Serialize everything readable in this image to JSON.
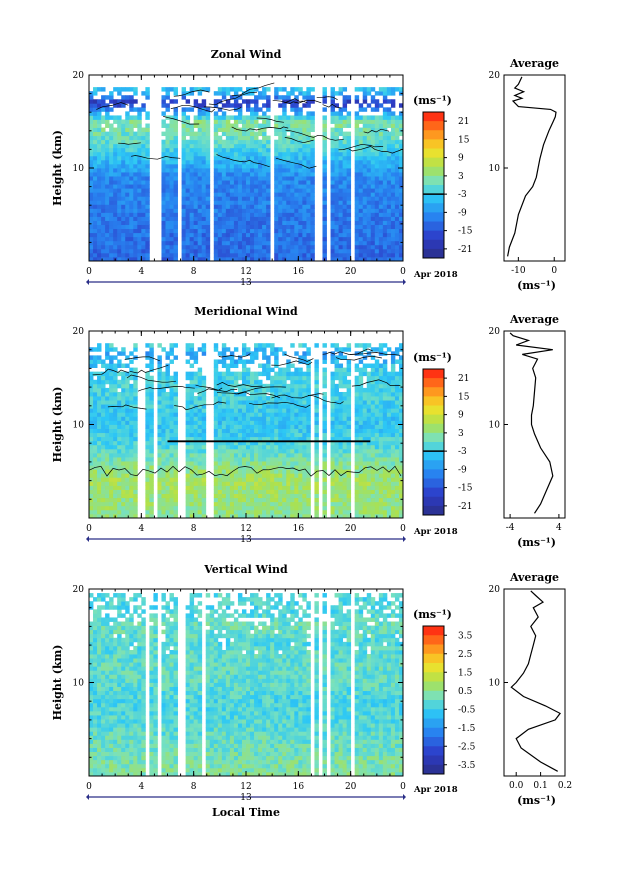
{
  "figure": {
    "panels": [
      {
        "title": "Zonal Wind",
        "ylabel": "Height (km)",
        "yticks": [
          "10",
          "20"
        ],
        "xticks": [
          "0",
          "4",
          "8",
          "12",
          "16",
          "20",
          "0"
        ],
        "date_day": "13",
        "date_month": "Apr 2018",
        "colorbar": {
          "unit": "(ms⁻¹)",
          "labels": [
            "21",
            "15",
            "9",
            "3",
            "-3",
            "-9",
            "-15",
            "-21"
          ],
          "top_color": "#ff1a10",
          "bottom_color": "#2a2f88"
        },
        "average": {
          "title": "Average",
          "xlabel": "(ms⁻¹)",
          "xticks": [
            "-10",
            "0"
          ],
          "yticks": [
            "10",
            "20"
          ]
        }
      },
      {
        "title": "Meridional Wind",
        "ylabel": "Height (km)",
        "yticks": [
          "10",
          "20"
        ],
        "xticks": [
          "0",
          "4",
          "8",
          "12",
          "16",
          "20",
          "0"
        ],
        "date_day": "13",
        "date_month": "Apr 2018",
        "colorbar": {
          "unit": "(ms⁻¹)",
          "labels": [
            "21",
            "15",
            "9",
            "3",
            "-3",
            "-9",
            "-15",
            "-21"
          ],
          "top_color": "#ff1a10",
          "bottom_color": "#2a2f88"
        },
        "average": {
          "title": "Average",
          "xlabel": "(ms⁻¹)",
          "xticks": [
            "-4",
            "4"
          ],
          "yticks": [
            "10",
            "20"
          ]
        }
      },
      {
        "title": "Vertical Wind",
        "ylabel": "Height (km)",
        "yticks": [
          "10",
          "20"
        ],
        "xticks": [
          "0",
          "4",
          "8",
          "12",
          "16",
          "20",
          "0"
        ],
        "date_day": "13",
        "date_month": "Apr 2018",
        "xlabel": "Local Time",
        "colorbar": {
          "unit": "(ms⁻¹)",
          "labels": [
            "3.5",
            "2.5",
            "1.5",
            "0.5",
            "-0.5",
            "-1.5",
            "-2.5",
            "-3.5"
          ],
          "top_color": "#ff1a10",
          "bottom_color": "#2a2f88"
        },
        "average": {
          "title": "Average",
          "xlabel": "(ms⁻¹)",
          "xticks": [
            "0.0",
            "0.1",
            "0.2"
          ],
          "yticks": [
            "10",
            "20"
          ]
        }
      }
    ]
  },
  "chart_data": [
    {
      "type": "heatmap",
      "title": "Zonal Wind",
      "ylabel": "Height (km)",
      "xlim": [
        0,
        24
      ],
      "ylim": [
        0,
        20
      ],
      "colorbar_range": [
        -24,
        24
      ],
      "data_gap_hours": [
        [
          4.6,
          5.4
        ],
        [
          6.8,
          7.2
        ],
        [
          9.1,
          9.5
        ],
        [
          13.7,
          14.1
        ],
        [
          17.1,
          17.4
        ],
        [
          17.6,
          17.8
        ],
        [
          18.3,
          18.6
        ],
        [
          20.0,
          20.3
        ]
      ],
      "band_profile_km": [
        [
          0,
          -13
        ],
        [
          3,
          -12
        ],
        [
          6,
          -11
        ],
        [
          9,
          -10
        ],
        [
          11,
          -5
        ],
        [
          13,
          0
        ],
        [
          15,
          2
        ],
        [
          16.5,
          -12
        ],
        [
          17,
          -20
        ],
        [
          18,
          -6
        ],
        [
          19,
          -3
        ],
        [
          20,
          -3
        ]
      ],
      "top_of_data_km": 18.5
    },
    {
      "type": "line",
      "title": "Average",
      "xlabel": "(ms⁻¹)",
      "xlim": [
        -14,
        3
      ],
      "ylim": [
        0,
        20
      ],
      "series": [
        {
          "points": [
            [
              -13,
              0.5
            ],
            [
              -12.5,
              1.5
            ],
            [
              -11,
              3
            ],
            [
              -10,
              5
            ],
            [
              -8,
              7
            ],
            [
              -6,
              8
            ],
            [
              -5,
              9
            ],
            [
              -4.5,
              10
            ],
            [
              -4,
              11
            ],
            [
              -3,
              12.5
            ],
            [
              -1.5,
              14
            ],
            [
              -0.3,
              15
            ],
            [
              0.3,
              15.5
            ],
            [
              0.5,
              16
            ],
            [
              -1,
              16.3
            ],
            [
              -10,
              16.6
            ],
            [
              -11.5,
              17.2
            ],
            [
              -9,
              17.5
            ],
            [
              -11,
              17.8
            ],
            [
              -8.5,
              18.2
            ],
            [
              -11,
              18.6
            ],
            [
              -10,
              19
            ],
            [
              -9,
              19.8
            ]
          ]
        }
      ]
    },
    {
      "type": "heatmap",
      "title": "Meridional Wind",
      "ylabel": "Height (km)",
      "xlim": [
        0,
        24
      ],
      "ylim": [
        0,
        20
      ],
      "colorbar_range": [
        -24,
        24
      ],
      "data_gap_hours": [
        [
          3.8,
          4.2
        ],
        [
          5.0,
          5.3
        ],
        [
          6.8,
          7.3
        ],
        [
          9.0,
          9.4
        ],
        [
          17.0,
          17.3
        ],
        [
          17.6,
          17.8
        ],
        [
          18.3,
          18.6
        ],
        [
          20.0,
          20.3
        ]
      ],
      "band_profile_km": [
        [
          0,
          3
        ],
        [
          2,
          4
        ],
        [
          4,
          5
        ],
        [
          6,
          2
        ],
        [
          8,
          -2
        ],
        [
          10,
          -4
        ],
        [
          12,
          -3
        ],
        [
          14,
          -2
        ],
        [
          16,
          -3
        ],
        [
          17.5,
          -8
        ],
        [
          18.5,
          -2
        ],
        [
          19.5,
          -3
        ]
      ],
      "top_of_data_km": 18.5
    },
    {
      "type": "line",
      "title": "Average",
      "xlabel": "(ms⁻¹)",
      "xlim": [
        -5,
        5
      ],
      "ylim": [
        0,
        20
      ],
      "series": [
        {
          "points": [
            [
              0,
              0.5
            ],
            [
              1,
              1.5
            ],
            [
              2,
              3
            ],
            [
              3,
              4.5
            ],
            [
              2.5,
              6
            ],
            [
              1,
              7.5
            ],
            [
              0,
              9
            ],
            [
              -0.5,
              10
            ],
            [
              -0.5,
              11
            ],
            [
              -0.2,
              12
            ],
            [
              0,
              13.5
            ],
            [
              0.2,
              15
            ],
            [
              -0.3,
              16
            ],
            [
              0.5,
              17
            ],
            [
              -2,
              17.5
            ],
            [
              3,
              18
            ],
            [
              -3,
              18.5
            ],
            [
              -1,
              19
            ],
            [
              -3.5,
              19.5
            ],
            [
              -4,
              19.8
            ]
          ]
        }
      ]
    },
    {
      "type": "heatmap",
      "title": "Vertical Wind",
      "ylabel": "Height (km)",
      "xlabel": "Local Time",
      "xlim": [
        0,
        24
      ],
      "ylim": [
        0,
        20
      ],
      "colorbar_range": [
        -4,
        4
      ],
      "data_gap_hours": [
        [
          4.2,
          4.5
        ],
        [
          5.2,
          5.6
        ],
        [
          6.8,
          7.3
        ],
        [
          8.5,
          8.9
        ],
        [
          17.0,
          17.3
        ],
        [
          17.6,
          17.8
        ],
        [
          18.3,
          18.6
        ],
        [
          20.0,
          20.3
        ]
      ],
      "band_profile_km": [
        [
          0,
          0.4
        ],
        [
          2,
          0.2
        ],
        [
          4,
          0.0
        ],
        [
          6,
          -0.2
        ],
        [
          8,
          -0.3
        ],
        [
          10,
          -0.1
        ],
        [
          12,
          0.0
        ],
        [
          14,
          -0.2
        ],
        [
          16,
          0.1
        ],
        [
          18,
          -0.3
        ],
        [
          20,
          -0.2
        ]
      ],
      "top_of_data_km": 19.7
    },
    {
      "type": "line",
      "title": "Average",
      "xlabel": "(ms⁻¹)",
      "xlim": [
        -0.05,
        0.2
      ],
      "ylim": [
        0,
        20
      ],
      "series": [
        {
          "points": [
            [
              0.17,
              0.5
            ],
            [
              0.1,
              1.5
            ],
            [
              0.02,
              3
            ],
            [
              0.0,
              4
            ],
            [
              0.05,
              5
            ],
            [
              0.16,
              6
            ],
            [
              0.18,
              6.7
            ],
            [
              0.12,
              7.5
            ],
            [
              0.03,
              8.5
            ],
            [
              -0.02,
              9.5
            ],
            [
              0.0,
              10
            ],
            [
              0.03,
              11
            ],
            [
              0.05,
              12
            ],
            [
              0.06,
              13
            ],
            [
              0.07,
              14
            ],
            [
              0.08,
              15
            ],
            [
              0.06,
              16
            ],
            [
              0.09,
              17
            ],
            [
              0.07,
              18
            ],
            [
              0.11,
              18.6
            ],
            [
              0.08,
              19.3
            ],
            [
              0.06,
              19.8
            ]
          ]
        }
      ]
    }
  ]
}
